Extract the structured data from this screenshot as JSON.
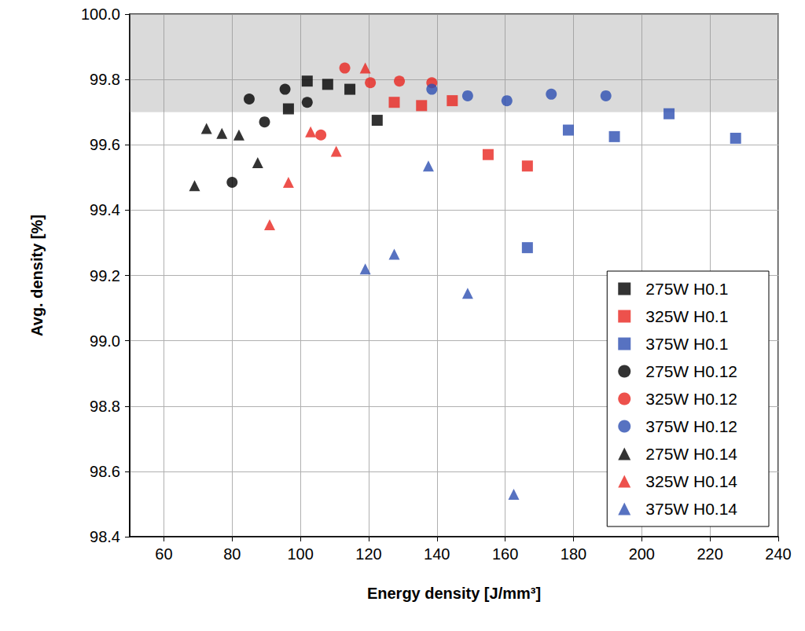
{
  "chart_data": {
    "type": "scatter",
    "x_label": "Energy density [J/mm³]",
    "y_label": "Avg. density [%]",
    "xlim": [
      50,
      240
    ],
    "xticks": [
      60,
      80,
      100,
      120,
      140,
      160,
      180,
      200,
      220,
      240
    ],
    "ylim": [
      98.4,
      100
    ],
    "yticks": [
      98.4,
      98.6,
      98.8,
      {
        "value": 99,
        "label": "99.0"
      },
      99.2,
      99.4,
      99.6,
      99.8,
      {
        "value": 100,
        "label": "100.0"
      }
    ],
    "grid": true,
    "legend": "lower right",
    "highlight_range": [
      99.7,
      100
    ],
    "series": [
      {
        "name": "275W H0.1",
        "color": "#000000",
        "marker": "square",
        "x": [
          96.5,
          102,
          108,
          114.5,
          122.5
        ],
        "values": [
          99.71,
          99.795,
          99.785,
          99.77,
          99.675
        ]
      },
      {
        "name": "325W H0.1",
        "color": "#e8251f",
        "marker": "square",
        "x": [
          127.5,
          135.5,
          144.5,
          155,
          166.5
        ],
        "values": [
          99.73,
          99.72,
          99.735,
          99.57,
          99.535
        ]
      },
      {
        "name": "375W H0.1",
        "color": "#2d4fb1",
        "marker": "square",
        "x": [
          166.5,
          178.5,
          192,
          208,
          227.5
        ],
        "values": [
          99.285,
          99.645,
          99.625,
          99.695,
          99.62
        ]
      },
      {
        "name": "275W H0.12",
        "color": "#000000",
        "marker": "circle",
        "x": [
          80,
          85,
          89.5,
          95.5,
          102
        ],
        "values": [
          99.485,
          99.74,
          99.67,
          99.77,
          99.73
        ]
      },
      {
        "name": "325W H0.12",
        "color": "#e8251f",
        "marker": "circle",
        "x": [
          106,
          113,
          120.5,
          129,
          138.5
        ],
        "values": [
          99.63,
          99.835,
          99.79,
          99.795,
          99.79
        ]
      },
      {
        "name": "375W H0.12",
        "color": "#2d4fb1",
        "marker": "circle",
        "x": [
          138.5,
          149,
          160.5,
          173.5,
          189.5
        ],
        "values": [
          99.77,
          99.75,
          99.735,
          99.755,
          99.75
        ]
      },
      {
        "name": "275W H0.14",
        "color": "#000000",
        "marker": "triangle",
        "x": [
          69,
          72.5,
          77,
          82,
          87.5
        ],
        "values": [
          99.475,
          99.65,
          99.635,
          99.63,
          99.545
        ]
      },
      {
        "name": "325W H0.14",
        "color": "#e8251f",
        "marker": "triangle",
        "x": [
          91,
          96.5,
          103,
          110.5,
          119
        ],
        "values": [
          99.355,
          99.485,
          99.64,
          99.58,
          99.835
        ]
      },
      {
        "name": "375W H0.14",
        "color": "#2d4fb1",
        "marker": "triangle",
        "x": [
          119,
          127.5,
          137.5,
          149,
          162.5
        ],
        "values": [
          99.22,
          99.265,
          99.535,
          99.145,
          98.53
        ]
      }
    ]
  }
}
